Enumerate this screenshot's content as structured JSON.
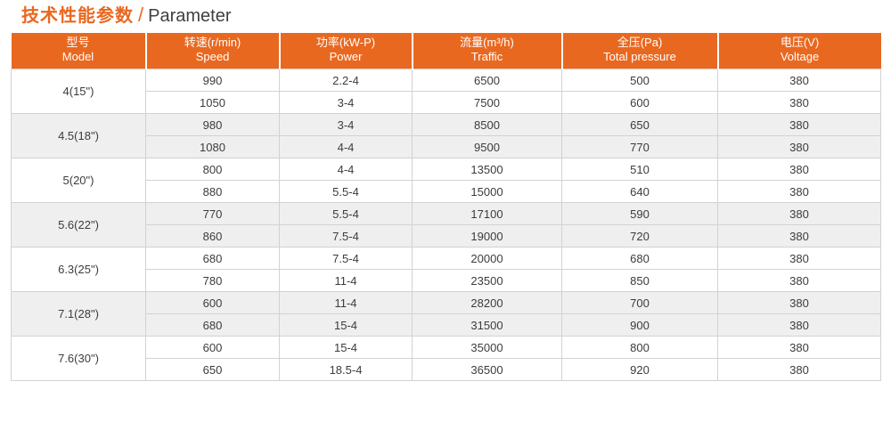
{
  "title": {
    "zh": "技术性能参数",
    "separator": "/",
    "en": "Parameter"
  },
  "colors": {
    "accent": "#E96820",
    "header_text": "#FFFFFF",
    "row_alt": "#EFEFEF",
    "border": "#D2D2D2",
    "text": "#3C3C3C"
  },
  "table": {
    "columns": [
      {
        "zh": "型号",
        "en": "Model"
      },
      {
        "zh": "转速(r/min)",
        "en": "Speed"
      },
      {
        "zh": "功率(kW-P)",
        "en": "Power"
      },
      {
        "zh": "流量(m³/h)",
        "en": "Traffic"
      },
      {
        "zh": "全压(Pa)",
        "en": "Total pressure"
      },
      {
        "zh": "电压(V)",
        "en": "Voltage"
      }
    ],
    "groups": [
      {
        "model": "4(15\")",
        "rows": [
          [
            "990",
            "2.2-4",
            "6500",
            "500",
            "380"
          ],
          [
            "1050",
            "3-4",
            "7500",
            "600",
            "380"
          ]
        ]
      },
      {
        "model": "4.5(18\")",
        "rows": [
          [
            "980",
            "3-4",
            "8500",
            "650",
            "380"
          ],
          [
            "1080",
            "4-4",
            "9500",
            "770",
            "380"
          ]
        ]
      },
      {
        "model": "5(20\")",
        "rows": [
          [
            "800",
            "4-4",
            "13500",
            "510",
            "380"
          ],
          [
            "880",
            "5.5-4",
            "15000",
            "640",
            "380"
          ]
        ]
      },
      {
        "model": "5.6(22\")",
        "rows": [
          [
            "770",
            "5.5-4",
            "17100",
            "590",
            "380"
          ],
          [
            "860",
            "7.5-4",
            "19000",
            "720",
            "380"
          ]
        ]
      },
      {
        "model": "6.3(25\")",
        "rows": [
          [
            "680",
            "7.5-4",
            "20000",
            "680",
            "380"
          ],
          [
            "780",
            "11-4",
            "23500",
            "850",
            "380"
          ]
        ]
      },
      {
        "model": "7.1(28\")",
        "rows": [
          [
            "600",
            "11-4",
            "28200",
            "700",
            "380"
          ],
          [
            "680",
            "15-4",
            "31500",
            "900",
            "380"
          ]
        ]
      },
      {
        "model": "7.6(30\")",
        "rows": [
          [
            "600",
            "15-4",
            "35000",
            "800",
            "380"
          ],
          [
            "650",
            "18.5-4",
            "36500",
            "920",
            "380"
          ]
        ]
      }
    ]
  }
}
